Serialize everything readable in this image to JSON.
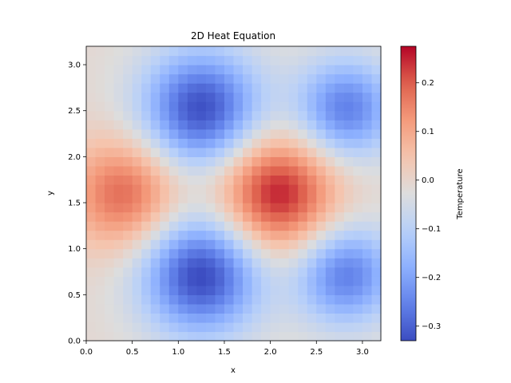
{
  "chart_data": {
    "type": "heatmap",
    "title": "2D Heat Equation",
    "xlabel": "x",
    "ylabel": "y",
    "xlim": [
      0.0,
      3.2
    ],
    "ylim": [
      0.0,
      3.2
    ],
    "grid": false,
    "grid_cells": [
      32,
      32
    ],
    "x_ticks": [
      "0.0",
      "0.5",
      "1.0",
      "1.5",
      "2.0",
      "2.5",
      "3.0"
    ],
    "y_ticks": [
      "0.0",
      "0.5",
      "1.0",
      "1.5",
      "2.0",
      "2.5",
      "3.0"
    ],
    "colormap": "coolwarm",
    "colorbar": {
      "label": "Temperature",
      "vmin": -0.33,
      "vmax": 0.275,
      "ticks": [
        "−0.3",
        "−0.2",
        "−0.1",
        "0.0",
        "0.1",
        "0.2"
      ]
    },
    "field": {
      "description": "Temperature distribution over the unit square region; warm peaks and cool wells",
      "background": -0.01,
      "features": [
        {
          "x": 2.07,
          "y": 1.6,
          "amplitude": 0.275,
          "spread": 0.45
        },
        {
          "x": 0.42,
          "y": 1.6,
          "amplitude": 0.2,
          "spread": 0.42
        },
        {
          "x": 1.25,
          "y": 2.52,
          "amplitude": -0.32,
          "spread": 0.45
        },
        {
          "x": 1.25,
          "y": 0.72,
          "amplitude": -0.33,
          "spread": 0.45
        },
        {
          "x": 2.82,
          "y": 2.52,
          "amplitude": -0.25,
          "spread": 0.38
        },
        {
          "x": 2.82,
          "y": 0.72,
          "amplitude": -0.25,
          "spread": 0.38
        }
      ]
    }
  }
}
